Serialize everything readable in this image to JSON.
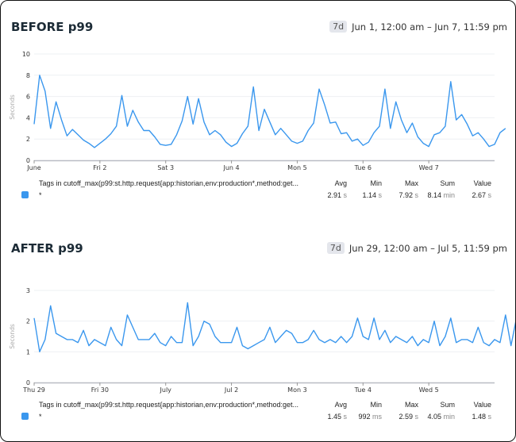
{
  "panels": [
    {
      "title": "BEFORE p99",
      "badge": "7d",
      "range": "Jun 1, 12:00 am – Jun 7, 11:59 pm",
      "legend": {
        "header": "Tags in cutoff_max(p99:st.http.request{app:historian,env:production*,method:get...",
        "cols": [
          "Avg",
          "Min",
          "Max",
          "Sum",
          "Value"
        ],
        "row": {
          "tag": "*",
          "avg": "2.91",
          "avg_unit": "s",
          "min": "1.14",
          "min_unit": "s",
          "max": "7.92",
          "max_unit": "s",
          "sum": "8.14",
          "sum_unit": "min",
          "value": "2.67",
          "value_unit": "s"
        }
      }
    },
    {
      "title": "AFTER p99",
      "badge": "7d",
      "range": "Jun 29, 12:00 am – Jul 5, 11:59 pm",
      "legend": {
        "header": "Tags in cutoff_max(p99:st.http.request{app:historian,env:production*,method:get...",
        "cols": [
          "Avg",
          "Min",
          "Max",
          "Sum",
          "Value"
        ],
        "row": {
          "tag": "*",
          "avg": "1.45",
          "avg_unit": "s",
          "min": "992",
          "min_unit": "ms",
          "max": "2.59",
          "max_unit": "s",
          "sum": "4.05",
          "sum_unit": "min",
          "value": "1.48",
          "value_unit": "s"
        }
      }
    }
  ],
  "chart_data": [
    {
      "type": "line",
      "title": "BEFORE p99",
      "ylabel": "Seconds",
      "ylim": [
        0,
        10
      ],
      "yticks": [
        0,
        2,
        4,
        6,
        8,
        10
      ],
      "xticks": [
        "June",
        "Fri 2",
        "Sat 3",
        "Jun 4",
        "Mon 5",
        "Tue 6",
        "Wed 7"
      ],
      "color": "#3a97ee",
      "points_per_day": 12,
      "values": [
        3.4,
        8.0,
        6.5,
        3.0,
        5.5,
        3.8,
        2.3,
        2.9,
        2.4,
        1.9,
        1.6,
        1.2,
        1.6,
        2.0,
        2.5,
        3.2,
        6.1,
        3.2,
        4.7,
        3.6,
        2.8,
        2.8,
        2.2,
        1.5,
        1.4,
        1.5,
        2.4,
        3.7,
        6.0,
        3.4,
        5.8,
        3.6,
        2.4,
        2.8,
        2.4,
        1.7,
        1.3,
        1.6,
        2.5,
        3.2,
        6.9,
        2.8,
        4.8,
        3.6,
        2.4,
        3.0,
        2.4,
        1.8,
        1.6,
        1.8,
        2.8,
        3.5,
        6.7,
        5.2,
        3.5,
        3.6,
        2.5,
        2.6,
        1.8,
        2.0,
        1.4,
        1.7,
        2.6,
        3.2,
        6.7,
        3.0,
        5.5,
        3.8,
        2.6,
        3.5,
        2.2,
        1.6,
        1.3,
        2.4,
        2.6,
        3.2,
        7.4,
        3.8,
        4.3,
        3.4,
        2.3,
        2.6,
        2.0,
        1.3,
        1.5,
        2.6,
        3.0
      ]
    },
    {
      "type": "line",
      "title": "AFTER p99",
      "ylabel": "Seconds",
      "ylim": [
        0,
        3
      ],
      "yticks": [
        0,
        1,
        2,
        3
      ],
      "xticks": [
        "Thu 29",
        "Fri 30",
        "July",
        "Jul 2",
        "Mon 3",
        "Tue 4",
        "Wed 5"
      ],
      "color": "#3a97ee",
      "points_per_day": 12,
      "values": [
        2.1,
        1.0,
        1.4,
        2.5,
        1.6,
        1.5,
        1.4,
        1.4,
        1.3,
        1.7,
        1.2,
        1.4,
        1.3,
        1.2,
        1.8,
        1.4,
        1.2,
        2.2,
        1.8,
        1.4,
        1.4,
        1.4,
        1.6,
        1.3,
        1.2,
        1.5,
        1.3,
        1.3,
        2.6,
        1.2,
        1.5,
        2.0,
        1.9,
        1.5,
        1.3,
        1.3,
        1.3,
        1.8,
        1.2,
        1.1,
        1.2,
        1.3,
        1.4,
        1.8,
        1.3,
        1.5,
        1.7,
        1.6,
        1.3,
        1.3,
        1.4,
        1.7,
        1.4,
        1.3,
        1.4,
        1.3,
        1.5,
        1.3,
        1.5,
        2.1,
        1.5,
        1.4,
        2.1,
        1.4,
        1.7,
        1.3,
        1.5,
        1.4,
        1.3,
        1.5,
        1.2,
        1.4,
        1.3,
        2.0,
        1.2,
        1.5,
        2.1,
        1.3,
        1.4,
        1.4,
        1.3,
        1.8,
        1.3,
        1.2,
        1.4,
        1.3,
        2.2,
        1.2,
        2.1,
        1.5,
        1.4,
        1.2,
        1.2,
        1.7,
        1.4,
        1.5,
        1.2,
        1.5,
        1.3
      ]
    }
  ]
}
